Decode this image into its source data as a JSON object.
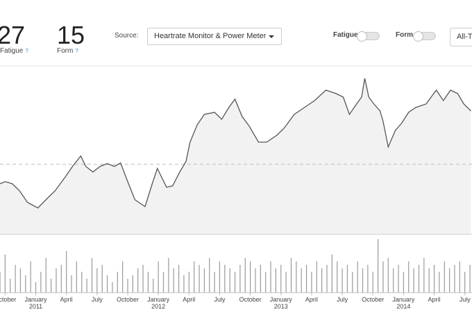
{
  "header": {
    "fatigue_value": 27,
    "fatigue_label": "Fatigue",
    "help": "?",
    "form_value": 15,
    "form_label": "Form",
    "source_label": "Source:",
    "source_value": "Heartrate Monitor & Power Meter",
    "toggle_fatigue": "Fatigue",
    "toggle_form": "Form",
    "range_button": "All-T"
  },
  "chart_data": [
    {
      "type": "line",
      "color": "#555555",
      "fill": "#f2f2f2",
      "xlim": [
        -0.5,
        45.7
      ],
      "ylim": [
        0,
        240
      ],
      "reference_line": 101,
      "x": [
        -0.5,
        0,
        0.7,
        1.4,
        2.2,
        3.2,
        4.2,
        4.9,
        5.9,
        6.6,
        7.4,
        7.9,
        8.6,
        9.3,
        10.0,
        10.7,
        11.3,
        12.0,
        12.7,
        13.7,
        14.4,
        14.9,
        15.8,
        16.4,
        17.1,
        17.7,
        18.1,
        18.8,
        19.5,
        20.5,
        21.2,
        21.9,
        22.5,
        23.2,
        23.9,
        24.8,
        25.6,
        26.6,
        27.3,
        28.3,
        29.3,
        30.3,
        31.4,
        32.4,
        33.1,
        33.7,
        34.4,
        34.9,
        35.2,
        35.6,
        36.1,
        36.7,
        37.0,
        37.5,
        38.2,
        38.8,
        39.5,
        40.2,
        41.2,
        42.2,
        42.9,
        43.6,
        44.3,
        44.9,
        45.6
      ],
      "values": [
        73,
        76,
        73,
        63,
        46,
        38,
        53,
        63,
        83,
        98,
        113,
        98,
        90,
        98,
        102,
        98,
        103,
        76,
        50,
        40,
        73,
        95,
        68,
        70,
        90,
        105,
        133,
        158,
        173,
        176,
        166,
        183,
        195,
        170,
        156,
        133,
        133,
        143,
        153,
        173,
        183,
        193,
        208,
        203,
        198,
        173,
        188,
        198,
        225,
        198,
        188,
        178,
        163,
        126,
        150,
        160,
        176,
        183,
        188,
        208,
        193,
        208,
        203,
        188,
        178
      ]
    },
    {
      "type": "bar",
      "color": "#999999",
      "xlim": [
        -0.5,
        45.7
      ],
      "ylim": [
        0,
        80
      ],
      "x": [
        -0.5,
        0,
        0.5,
        1,
        1.5,
        2,
        2.5,
        3,
        3.5,
        4,
        4.5,
        5,
        5.5,
        6,
        6.5,
        7,
        7.5,
        8,
        8.5,
        9,
        9.5,
        10,
        10.5,
        11,
        11.5,
        12,
        12.5,
        13,
        13.5,
        14,
        14.5,
        15,
        15.5,
        16,
        16.5,
        17,
        17.5,
        18,
        18.5,
        19,
        19.5,
        20,
        20.5,
        21,
        21.5,
        22,
        22.5,
        23,
        23.5,
        24,
        24.5,
        25,
        25.5,
        26,
        26.5,
        27,
        27.5,
        28,
        28.5,
        29,
        29.5,
        30,
        30.5,
        31,
        31.5,
        32,
        32.5,
        33,
        33.5,
        34,
        34.5,
        35,
        35.5,
        36,
        36.5,
        37,
        37.5,
        38,
        38.5,
        39,
        39.5,
        40,
        40.5,
        41,
        41.5,
        42,
        42.5,
        43,
        43.5,
        44,
        44.5,
        45,
        45.5
      ],
      "values": [
        30,
        55,
        20,
        40,
        35,
        25,
        45,
        15,
        30,
        50,
        20,
        35,
        40,
        60,
        25,
        45,
        30,
        20,
        50,
        35,
        40,
        25,
        15,
        30,
        45,
        20,
        25,
        35,
        40,
        30,
        20,
        45,
        30,
        50,
        35,
        40,
        25,
        30,
        45,
        40,
        35,
        50,
        30,
        45,
        40,
        35,
        30,
        40,
        50,
        45,
        35,
        40,
        30,
        45,
        35,
        40,
        30,
        50,
        45,
        35,
        40,
        30,
        45,
        35,
        40,
        55,
        45,
        35,
        40,
        30,
        45,
        35,
        40,
        30,
        77,
        45,
        50,
        35,
        40,
        30,
        45,
        35,
        40,
        50,
        35,
        40,
        30,
        45,
        35,
        40,
        45,
        30,
        40
      ],
      "xticks": [
        {
          "value": 0,
          "label": "October"
        },
        {
          "value": 3,
          "label": "January"
        },
        {
          "value": 6,
          "label": "April"
        },
        {
          "value": 9,
          "label": "July"
        },
        {
          "value": 12,
          "label": "October"
        },
        {
          "value": 15,
          "label": "January"
        },
        {
          "value": 18,
          "label": "April"
        },
        {
          "value": 21,
          "label": "July"
        },
        {
          "value": 24,
          "label": "October"
        },
        {
          "value": 27,
          "label": "January"
        },
        {
          "value": 30,
          "label": "April"
        },
        {
          "value": 33,
          "label": "July"
        },
        {
          "value": 36,
          "label": "October"
        },
        {
          "value": 39,
          "label": "January"
        },
        {
          "value": 42,
          "label": "April"
        },
        {
          "value": 45,
          "label": "July"
        }
      ],
      "year_ticks": [
        {
          "value": 3,
          "label": "2011"
        },
        {
          "value": 15,
          "label": "2012"
        },
        {
          "value": 27,
          "label": "2013"
        },
        {
          "value": 39,
          "label": "2014"
        }
      ]
    }
  ]
}
